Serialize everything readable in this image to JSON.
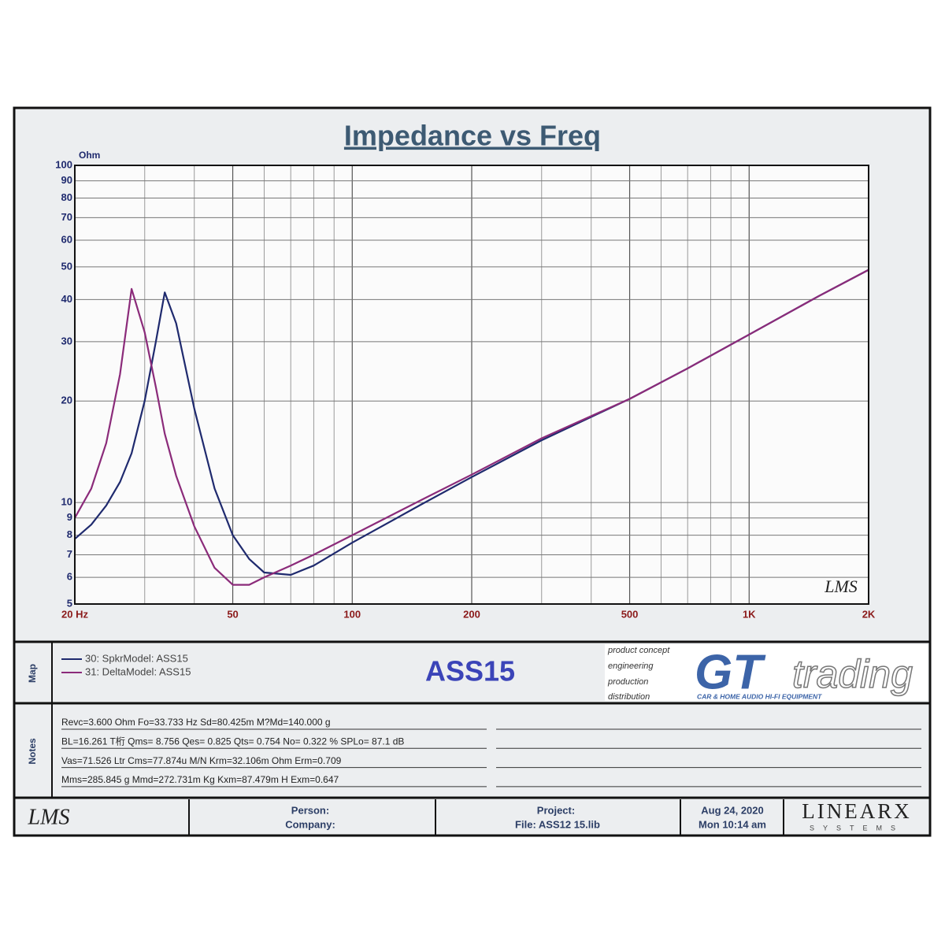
{
  "chart_data": {
    "type": "line",
    "title": "Impedance vs Freq",
    "y_label": "Ohm",
    "x_scale": "log",
    "y_scale": "log",
    "grid": true,
    "xlim": [
      20,
      2000
    ],
    "ylim": [
      5,
      100
    ],
    "xticks": [
      {
        "value": 20,
        "label": "20 Hz"
      },
      50,
      100,
      200,
      500,
      {
        "value": 1000,
        "label": "1K"
      },
      {
        "value": 2000,
        "label": "2K"
      }
    ],
    "xminor": [
      30,
      40,
      60,
      70,
      80,
      90,
      300,
      400,
      600,
      700,
      800,
      900
    ],
    "yticks": [
      5,
      6,
      7,
      8,
      9,
      10,
      20,
      30,
      40,
      50,
      60,
      70,
      80,
      90,
      100
    ],
    "x": [
      20,
      22,
      24,
      26,
      27.8,
      30,
      32,
      33.7,
      36,
      40,
      45,
      50,
      55,
      60,
      70,
      80,
      100,
      150,
      200,
      300,
      500,
      700,
      1000,
      1500,
      2000
    ],
    "series": [
      {
        "name": "30: SpkrModel: ASS15",
        "color": "#1f2a6e",
        "values": [
          7.8,
          8.6,
          9.8,
          11.5,
          14,
          20,
          30,
          42,
          34,
          19,
          11,
          8,
          6.8,
          6.2,
          6.1,
          6.5,
          7.6,
          9.9,
          11.9,
          15.3,
          20.3,
          25,
          31.5,
          41,
          49
        ]
      },
      {
        "name": "31: DeltaModel: ASS15",
        "color": "#8b2b7a",
        "values": [
          9,
          11,
          15,
          24,
          43,
          32,
          22,
          16,
          12,
          8.5,
          6.4,
          5.7,
          5.7,
          6.0,
          6.5,
          7.0,
          8.0,
          10.2,
          12.1,
          15.5,
          20.3,
          25,
          31.5,
          41,
          49
        ]
      }
    ],
    "watermark": "LMS"
  },
  "map": {
    "label": "Map",
    "title": "ASS15"
  },
  "logo": {
    "taglines": [
      "product concept",
      "engineering",
      "production",
      "distribution"
    ],
    "mark": "GT",
    "word": "trading",
    "slogan": "CAR & HOME AUDIO HI-FI EQUIPMENT"
  },
  "notes": {
    "label": "Notes",
    "lines": [
      "Revc=3.600 Ohm  Fo=33.733 Hz  Sd=80.425m M?Md=140.000 g",
      "BL=16.261 T桁  Qms= 8.756  Qes= 0.825  Qts= 0.754  No= 0.322 %  SPLo= 87.1 dB",
      "Vas=71.526 Ltr  Cms=77.874u M/N  Krm=32.106m Ohm  Erm=0.709",
      "Mms=285.845 g  Mmd=272.731m Kg  Kxm=87.479m H  Exm=0.647"
    ]
  },
  "footer": {
    "brand": "LMS",
    "person": "Person:",
    "company": "Company:",
    "project": "Project:",
    "file": "File: ASS12 15.lib",
    "date": "Aug 24, 2020",
    "time": "Mon 10:14 am",
    "maker": "LINEARX",
    "maker_sub": "SYSTEMS"
  }
}
